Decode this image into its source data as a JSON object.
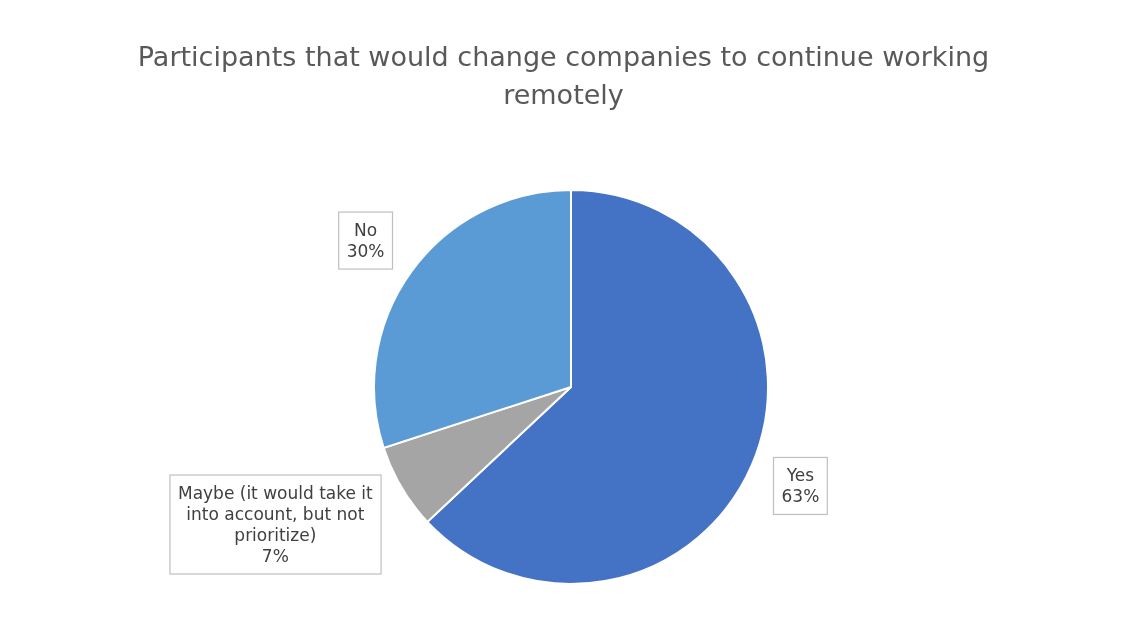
{
  "chart_data": {
    "type": "pie",
    "title": "Participants that would change companies to continue working remotely",
    "categories": [
      "Yes",
      "Maybe (it would take it into account, but not prioritize)",
      "No"
    ],
    "values": [
      63,
      7,
      30
    ],
    "colors": [
      "#4472c4",
      "#a5a5a5",
      "#5b9bd5"
    ],
    "value_labels": [
      "63%",
      "7%",
      "30%"
    ]
  }
}
